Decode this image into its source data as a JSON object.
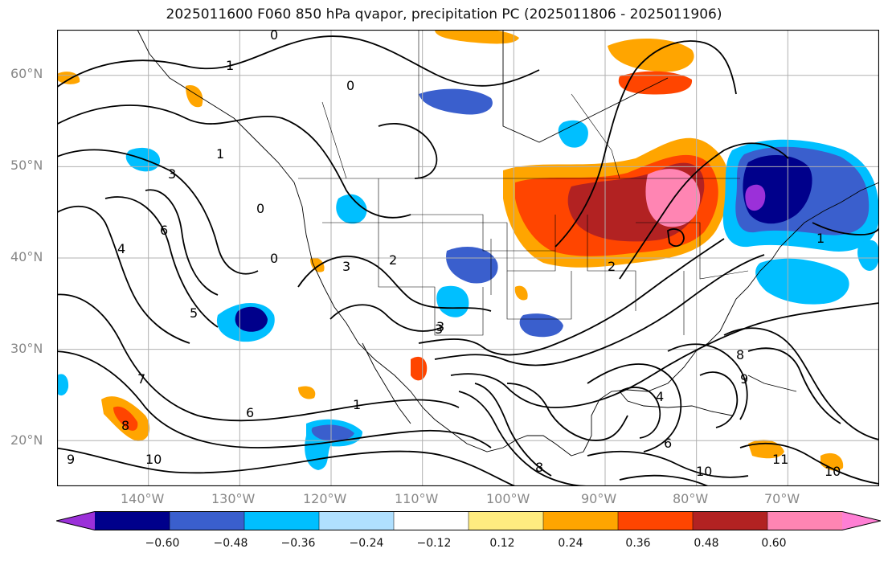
{
  "title": "2025011600 F060 850 hPa qvapor, precipitation PC (2025011806 - 2025011906)",
  "map": {
    "lon_range": [
      -150,
      -60
    ],
    "lat_range": [
      15,
      65
    ],
    "lat_labels": [
      "60°N",
      "50°N",
      "40°N",
      "30°N",
      "20°N"
    ],
    "lon_labels": [
      "140°W",
      "130°W",
      "120°W",
      "110°W",
      "100°W",
      "90°W",
      "80°W",
      "70°W"
    ],
    "contour_labels": [
      "0",
      "1",
      "3",
      "2",
      "4",
      "5",
      "6",
      "7",
      "8",
      "9",
      "10",
      "11"
    ]
  },
  "colorbar": {
    "colors": [
      "#9b30d9",
      "#00008b",
      "#3a5fcd",
      "#00bfff",
      "#b0e0ff",
      "#ffffff",
      "#ffec80",
      "#ffa500",
      "#ff4500",
      "#b22222",
      "#ff85b3",
      "#ff7fd4"
    ],
    "ticks": [
      "−0.60",
      "−0.48",
      "−0.36",
      "−0.24",
      "−0.12",
      "0.12",
      "0.24",
      "0.36",
      "0.48",
      "0.60"
    ]
  }
}
